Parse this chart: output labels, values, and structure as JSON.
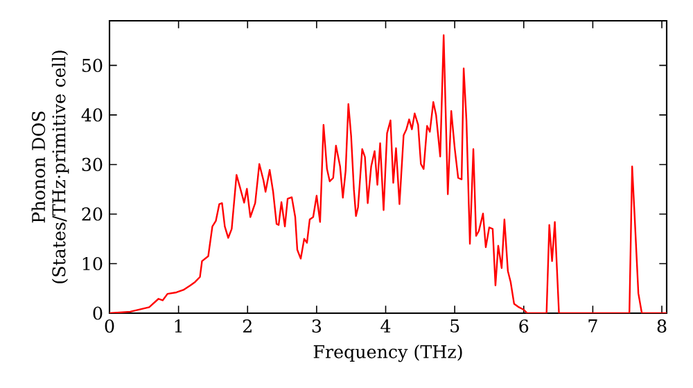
{
  "chart_data": {
    "type": "line",
    "xlabel": "Frequency (THz)",
    "ylabel": "Phonon DOS (States/THz·primitive cell)",
    "xlim": [
      0,
      8.07
    ],
    "ylim": [
      0,
      59
    ],
    "xticks": [
      0,
      1,
      2,
      3,
      4,
      5,
      6,
      7,
      8
    ],
    "yticks": [
      0,
      10,
      20,
      30,
      40,
      50
    ],
    "grid": false,
    "marker": "none",
    "line_style": "solid",
    "series": [
      {
        "color": "#ff0000",
        "x": [
          0,
          0.3,
          0.575,
          0.71,
          0.77,
          0.84,
          0.97,
          1.07,
          1.17,
          1.24,
          1.31,
          1.34,
          1.43,
          1.49,
          1.54,
          1.59,
          1.63,
          1.67,
          1.72,
          1.77,
          1.84,
          1.89,
          1.95,
          1.99,
          2.04,
          2.11,
          2.17,
          2.23,
          2.26,
          2.32,
          2.37,
          2.42,
          2.45,
          2.49,
          2.54,
          2.58,
          2.64,
          2.69,
          2.72,
          2.77,
          2.82,
          2.86,
          2.9,
          2.95,
          3.0,
          3.05,
          3.1,
          3.15,
          3.19,
          3.24,
          3.28,
          3.34,
          3.38,
          3.42,
          3.46,
          3.5,
          3.54,
          3.57,
          3.6,
          3.66,
          3.7,
          3.74,
          3.79,
          3.84,
          3.88,
          3.92,
          3.97,
          4.02,
          4.07,
          4.11,
          4.15,
          4.2,
          4.26,
          4.3,
          4.34,
          4.38,
          4.42,
          4.47,
          4.51,
          4.55,
          4.6,
          4.64,
          4.69,
          4.73,
          4.79,
          4.84,
          4.9,
          4.95,
          5.0,
          5.05,
          5.1,
          5.13,
          5.17,
          5.22,
          5.27,
          5.31,
          5.35,
          5.41,
          5.45,
          5.5,
          5.55,
          5.59,
          5.63,
          5.68,
          5.72,
          5.77,
          5.81,
          5.86,
          5.93,
          6.0,
          6.05,
          6.33,
          6.37,
          6.41,
          6.45,
          6.51,
          7.53,
          7.57,
          7.61,
          7.66,
          7.71,
          8.07
        ],
        "values": [
          0,
          0.3,
          1.2,
          2.9,
          2.6,
          3.9,
          4.2,
          4.7,
          5.6,
          6.3,
          7.3,
          10.5,
          11.5,
          17.5,
          18.6,
          22,
          22.2,
          17.5,
          15.2,
          17,
          27.9,
          25.4,
          22.3,
          25.1,
          19.4,
          22.2,
          30.1,
          26.8,
          24.5,
          28.9,
          24.5,
          18,
          17.8,
          22.4,
          17.5,
          23.1,
          23.4,
          19.4,
          12.8,
          11,
          15,
          14.2,
          18.9,
          19.4,
          23.7,
          18.4,
          38,
          29.1,
          26.6,
          27.3,
          33.8,
          29.6,
          23.3,
          28.7,
          42.2,
          35.7,
          24.9,
          19.6,
          21.4,
          33.1,
          31.5,
          22.2,
          29.6,
          32.7,
          25.9,
          34.3,
          20.8,
          36.3,
          38.9,
          26.3,
          33.3,
          22,
          35.9,
          37.1,
          39.1,
          37.1,
          40.3,
          38,
          30.1,
          29.1,
          37.8,
          36.6,
          42.6,
          40,
          31.6,
          56.1,
          24,
          40.8,
          33.3,
          27.3,
          27,
          49.4,
          38.9,
          14,
          33.1,
          15.6,
          16.6,
          20.1,
          13.3,
          17.3,
          17,
          5.6,
          13.6,
          9.1,
          18.9,
          8.5,
          6.3,
          1.9,
          1.2,
          0.7,
          0,
          0,
          17.8,
          10.5,
          18.4,
          0,
          0,
          29.6,
          18.4,
          4,
          0,
          0
        ]
      }
    ]
  }
}
